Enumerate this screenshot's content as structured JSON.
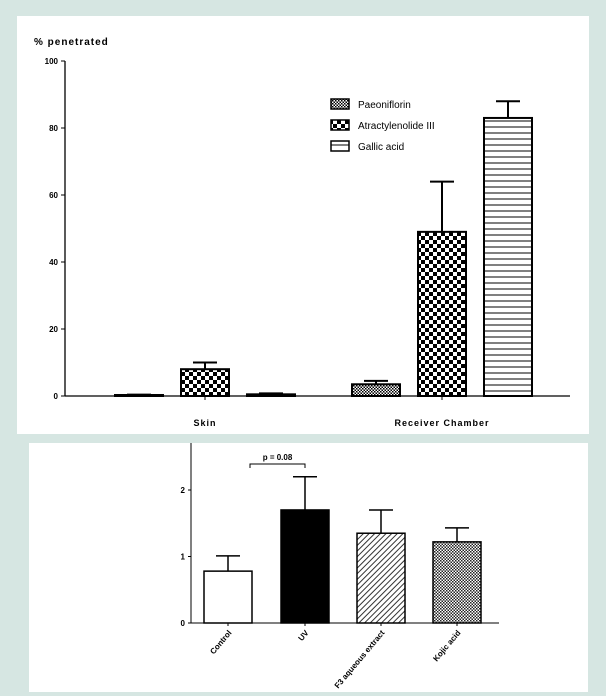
{
  "chart_data": [
    {
      "type": "bar",
      "ylabel": "% penetrated",
      "ylim": [
        0,
        100
      ],
      "yticks": [
        "0",
        "20",
        "40",
        "60",
        "80",
        "100"
      ],
      "categories": [
        "Skin",
        "Receiver Chamber"
      ],
      "legend_position": "top-right",
      "series": [
        {
          "name": "Paeoniflorin",
          "pattern": "dense-checker",
          "values": [
            0.3,
            3.5
          ],
          "errors": [
            0.1,
            1.0
          ]
        },
        {
          "name": "Atractylenolide III",
          "pattern": "checker",
          "values": [
            8.0,
            49.0
          ],
          "errors": [
            2.0,
            15.0
          ]
        },
        {
          "name": "Gallic acid",
          "pattern": "hlines",
          "values": [
            0.5,
            83.0
          ],
          "errors": [
            0.3,
            5.0
          ]
        }
      ]
    },
    {
      "type": "bar",
      "ylim": [
        0,
        2.6
      ],
      "yticks": [
        "0",
        "1",
        "2"
      ],
      "categories": [
        "Control",
        "UV",
        "F3 aqueous extract",
        "Kojic acid"
      ],
      "values": [
        0.78,
        1.7,
        1.35,
        1.22
      ],
      "errors": [
        0.23,
        0.5,
        0.35,
        0.21
      ],
      "fills": [
        "white",
        "black",
        "hatch",
        "crosshatch"
      ],
      "annotation": {
        "text": "p = 0.08",
        "between": [
          "Control",
          "UV"
        ]
      }
    }
  ]
}
